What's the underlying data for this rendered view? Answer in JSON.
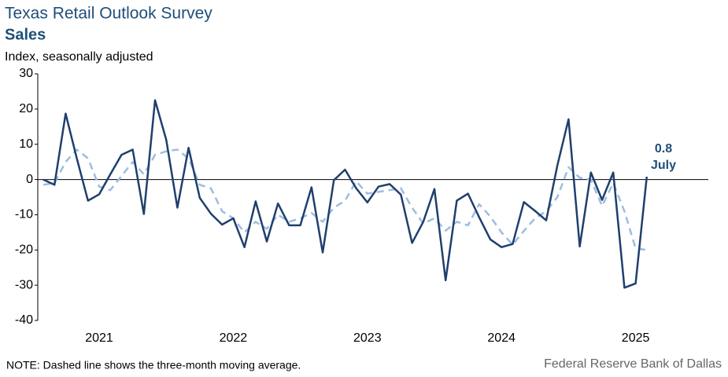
{
  "chart_data": {
    "type": "line",
    "title": "Texas Retail Outlook Survey",
    "subtitle": "Sales",
    "y_label": "Index, seasonally adjusted",
    "note": "NOTE: Dashed line shows the three-month moving average.",
    "source": "Federal Reserve Bank of Dallas",
    "annotation": "July",
    "categories": [
      null,
      null,
      null,
      null,
      null,
      "2021",
      null,
      null,
      null,
      null,
      null,
      null,
      null,
      null,
      null,
      null,
      null,
      "2022",
      null,
      null,
      null,
      null,
      null,
      null,
      null,
      null,
      null,
      null,
      null,
      "2023",
      null,
      null,
      null,
      null,
      null,
      null,
      null,
      null,
      null,
      null,
      null,
      "2024",
      null,
      null,
      null,
      null,
      null,
      null,
      null,
      null,
      null,
      null,
      null,
      "2025",
      null
    ],
    "series": [
      {
        "color": "#1f3f6e",
        "dashed": false,
        "values": [
          0,
          -1.5,
          18.7,
          6,
          -6,
          -4.2,
          1.5,
          7,
          8.5,
          -9.8,
          22.5,
          11.3,
          -8,
          9,
          -5.2,
          -9.7,
          -12.8,
          -11,
          -19.2,
          -6.2,
          -17.6,
          -6.8,
          -13,
          -13,
          -2.2,
          -20.7,
          -0.2,
          2.8,
          -2.5,
          -6.5,
          -2,
          -1.3,
          -4.3,
          -18,
          -12,
          -2.7,
          -28.6,
          -6,
          -4,
          -10.7,
          -17,
          -19.2,
          -18.3,
          -6.4,
          -8.9,
          -11.6,
          4,
          17.1,
          -19,
          2,
          -5.8,
          2,
          -30.7,
          -29.5,
          0.8
        ]
      },
      {
        "color": "#9dbde0",
        "dashed": true,
        "values": [
          -1.5,
          -1,
          5,
          8.5,
          6,
          -2,
          -3,
          1,
          5,
          1.5,
          7,
          8,
          8.5,
          6,
          -1.5,
          -2.5,
          -9,
          -11,
          -15,
          -12,
          -14,
          -10,
          -12,
          -11,
          -9.5,
          -12,
          -8,
          -6,
          -0.5,
          -4,
          -3.5,
          -3,
          -2.5,
          -8,
          -12.5,
          -11,
          -14.5,
          -12,
          -13,
          -7,
          -10.5,
          -15,
          -18.5,
          -14.6,
          -11,
          -9,
          -5,
          3.5,
          0.5,
          0,
          -7.5,
          -1,
          -9,
          -19.5,
          -20
        ]
      }
    ],
    "ylim": [
      -40,
      30
    ],
    "yticks": [
      -40,
      -30,
      -20,
      -10,
      0,
      10,
      20,
      30
    ]
  }
}
